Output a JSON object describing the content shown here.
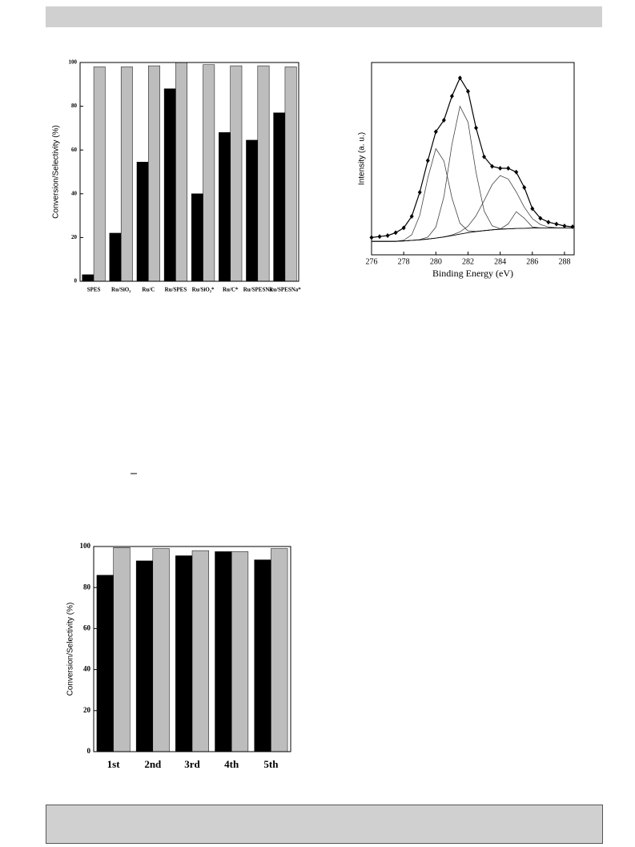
{
  "chart_data": [
    {
      "type": "bar",
      "categories": [
        "SPES",
        "Ru/SiO₂",
        "Ru/C",
        "Ru/SPES",
        "Ru/SiO₂*",
        "Ru/C*",
        "Ru/SPESNa",
        "Ru/SPESNa*"
      ],
      "series": [
        {
          "color": "#000000",
          "values": [
            3,
            22,
            54.5,
            88,
            40,
            68,
            64.5,
            77
          ]
        },
        {
          "color": "#bdbdbd",
          "values": [
            98,
            98,
            98.5,
            100,
            99,
            98.5,
            98.5,
            98
          ]
        }
      ],
      "ylim": [
        0,
        100
      ],
      "yticks": [
        0,
        20,
        40,
        60,
        80,
        100
      ],
      "ylabel": "Conversion/Selectivity (%)"
    },
    {
      "type": "line",
      "x": [
        276,
        276.5,
        277,
        277.5,
        278,
        278.5,
        279,
        279.5,
        280,
        280.5,
        281,
        281.5,
        282,
        282.5,
        283,
        283.5,
        284,
        284.5,
        285,
        285.5,
        286,
        286.5,
        287,
        287.5,
        288,
        288.5
      ],
      "series": [
        {
          "color": "#000000",
          "marker": "diamond",
          "values": [
            9,
            9.5,
            10,
            11.5,
            14,
            20,
            32.5,
            49,
            64,
            70,
            82.5,
            92,
            85,
            66,
            51,
            46,
            45,
            45,
            43,
            35,
            24,
            19,
            17,
            16,
            15,
            14.6
          ]
        },
        {
          "color": "#444444",
          "values": [
            7,
            7,
            7,
            7.1,
            7.6,
            10.4,
            20.5,
            40,
            55.2,
            48.8,
            29.6,
            16.4,
            12.4,
            12.2,
            12.6,
            13,
            13.3,
            13.5,
            13.7,
            13.8,
            13.9,
            14,
            14,
            14,
            14,
            14
          ]
        },
        {
          "color": "#444444",
          "values": [
            7,
            7,
            7,
            7,
            7.2,
            7.5,
            7.9,
            9.2,
            14.4,
            30.3,
            57.4,
            77.2,
            69,
            42.8,
            22.8,
            15.1,
            13.6,
            13.5,
            13.7,
            13.8,
            13.9,
            14,
            14,
            14,
            14,
            14
          ]
        },
        {
          "color": "#444444",
          "values": [
            7,
            7,
            7,
            7,
            7.2,
            7.5,
            7.8,
            8.2,
            8.7,
            9.3,
            10.3,
            11.9,
            14.9,
            20.3,
            28.2,
            36.5,
            41.2,
            39.4,
            32.7,
            24.7,
            18.8,
            15.8,
            14.5,
            14.1,
            14,
            14
          ]
        },
        {
          "color": "#444444",
          "values": [
            7,
            7,
            7,
            7,
            7.2,
            7.5,
            7.8,
            8.2,
            8.7,
            9.3,
            10,
            10.8,
            11.5,
            12.1,
            12.6,
            13,
            13.4,
            16.1,
            22.4,
            19,
            14.5,
            14,
            14,
            14,
            14,
            14
          ]
        },
        {
          "color": "#000000",
          "values": [
            7,
            7,
            7,
            7,
            7.2,
            7.5,
            7.8,
            8.2,
            8.7,
            9.3,
            10,
            10.8,
            11.5,
            12.1,
            12.6,
            13,
            13.3,
            13.5,
            13.7,
            13.8,
            13.9,
            14,
            14,
            14,
            14,
            14
          ]
        }
      ],
      "xlim": [
        276,
        288.6
      ],
      "xticks": [
        276,
        278,
        280,
        282,
        284,
        286,
        288
      ],
      "ylim": [
        0,
        100
      ],
      "xlabel": "Binding Energy (eV)",
      "ylabel": "Intensity (a. u.)"
    },
    {
      "type": "bar",
      "categories": [
        "1st",
        "2nd",
        "3rd",
        "4th",
        "5th"
      ],
      "series": [
        {
          "color": "#000000",
          "values": [
            86,
            93,
            95.5,
            97.5,
            93.5
          ]
        },
        {
          "color": "#bdbdbd",
          "values": [
            99.5,
            99,
            98,
            97.5,
            99
          ]
        }
      ],
      "ylim": [
        0,
        100
      ],
      "yticks": [
        0,
        20,
        40,
        60,
        80,
        100
      ],
      "ylabel": "Conversion/Selectivity (%)"
    }
  ]
}
